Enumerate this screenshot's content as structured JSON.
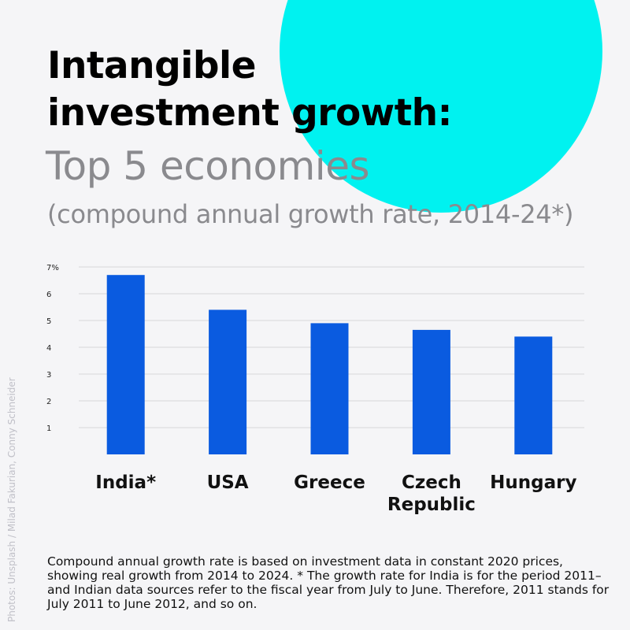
{
  "header": {
    "title_line1": "Intangible",
    "title_line2": "investment growth:",
    "subtitle": "Top 5 economies",
    "subtitle2": "(compound annual growth rate, 2014-24*)"
  },
  "chart_data": {
    "type": "bar",
    "categories": [
      [
        "India*"
      ],
      [
        "USA"
      ],
      [
        "Greece"
      ],
      [
        "Czech",
        "Republic"
      ],
      [
        "Hungary"
      ]
    ],
    "values": [
      6.7,
      5.4,
      4.9,
      4.65,
      4.4
    ],
    "ytick_labels": [
      "1",
      "2",
      "3",
      "4",
      "5",
      "6",
      "7%"
    ],
    "ylim": [
      0,
      7
    ],
    "grid": true,
    "bar_color": "#0a5be0"
  },
  "footnote": "Compound annual growth rate is based on investment data in constant 2020 prices, showing real growth from 2014 to 2024. * The growth rate for India is for the period 2011– and Indian data sources refer to the fiscal year from July to June. Therefore, 2011 stands for July 2011 to June 2012, and so on.",
  "credit": "Photos: Unsplash / Milad Fakurian, Conny Schneider",
  "colors": {
    "accent_circle": "#00f2f0",
    "bar": "#0a5be0",
    "subtitle": "#8a8a8e"
  }
}
